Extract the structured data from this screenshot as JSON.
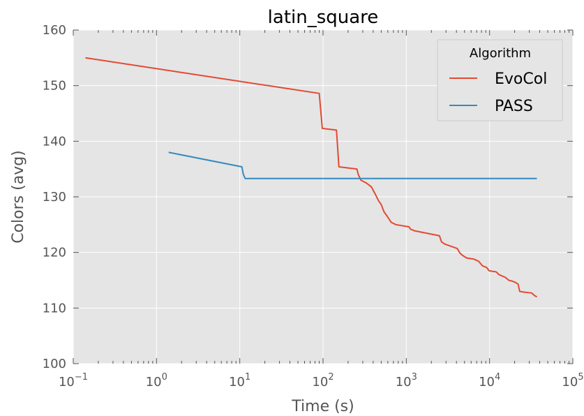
{
  "chart_data": {
    "type": "line",
    "title": "latin_square",
    "xlabel": "Time (s)",
    "ylabel": "Colors (avg)",
    "xscale": "log",
    "xlim": [
      0.1,
      100000
    ],
    "ylim": [
      100,
      160
    ],
    "grid": true,
    "legend_title": "Algorithm",
    "legend_placement": "top-right",
    "x_ticks": [
      {
        "value": 0.1,
        "base": "10",
        "exp": "−1"
      },
      {
        "value": 1,
        "base": "10",
        "exp": "0"
      },
      {
        "value": 10,
        "base": "10",
        "exp": "1"
      },
      {
        "value": 100,
        "base": "10",
        "exp": "2"
      },
      {
        "value": 1000,
        "base": "10",
        "exp": "3"
      },
      {
        "value": 10000,
        "base": "10",
        "exp": "4"
      },
      {
        "value": 100000,
        "base": "10",
        "exp": "5"
      }
    ],
    "y_ticks": [
      100,
      110,
      120,
      130,
      140,
      150,
      160
    ],
    "series": [
      {
        "name": "EvoCol",
        "color": "#e24a33",
        "points": [
          [
            0.14,
            155.0
          ],
          [
            90,
            148.6
          ],
          [
            98,
            142.3
          ],
          [
            145,
            142.0
          ],
          [
            155,
            135.4
          ],
          [
            255,
            135.0
          ],
          [
            265,
            134.0
          ],
          [
            285,
            133.0
          ],
          [
            330,
            132.5
          ],
          [
            380,
            131.8
          ],
          [
            420,
            130.6
          ],
          [
            460,
            129.4
          ],
          [
            500,
            128.6
          ],
          [
            540,
            127.3
          ],
          [
            590,
            126.5
          ],
          [
            660,
            125.4
          ],
          [
            750,
            125.0
          ],
          [
            900,
            124.8
          ],
          [
            1080,
            124.6
          ],
          [
            1120,
            124.2
          ],
          [
            1250,
            123.9
          ],
          [
            2500,
            123.0
          ],
          [
            2650,
            121.9
          ],
          [
            2900,
            121.5
          ],
          [
            3300,
            121.2
          ],
          [
            4100,
            120.7
          ],
          [
            4400,
            119.9
          ],
          [
            4700,
            119.5
          ],
          [
            5300,
            119.0
          ],
          [
            6500,
            118.8
          ],
          [
            7400,
            118.4
          ],
          [
            8200,
            117.6
          ],
          [
            9200,
            117.3
          ],
          [
            9900,
            116.7
          ],
          [
            12000,
            116.5
          ],
          [
            13000,
            116.0
          ],
          [
            14000,
            115.8
          ],
          [
            15500,
            115.5
          ],
          [
            17000,
            115.0
          ],
          [
            19000,
            114.8
          ],
          [
            20500,
            114.6
          ],
          [
            22000,
            114.3
          ],
          [
            23000,
            113.0
          ],
          [
            25000,
            112.9
          ],
          [
            32000,
            112.7
          ],
          [
            35000,
            112.2
          ],
          [
            37000,
            112.0
          ]
        ]
      },
      {
        "name": "PASS",
        "color": "#348abd",
        "points": [
          [
            1.4,
            138.0
          ],
          [
            10.6,
            135.4
          ],
          [
            11.0,
            134.1
          ],
          [
            11.6,
            133.3
          ],
          [
            37000,
            133.3
          ]
        ]
      }
    ]
  }
}
